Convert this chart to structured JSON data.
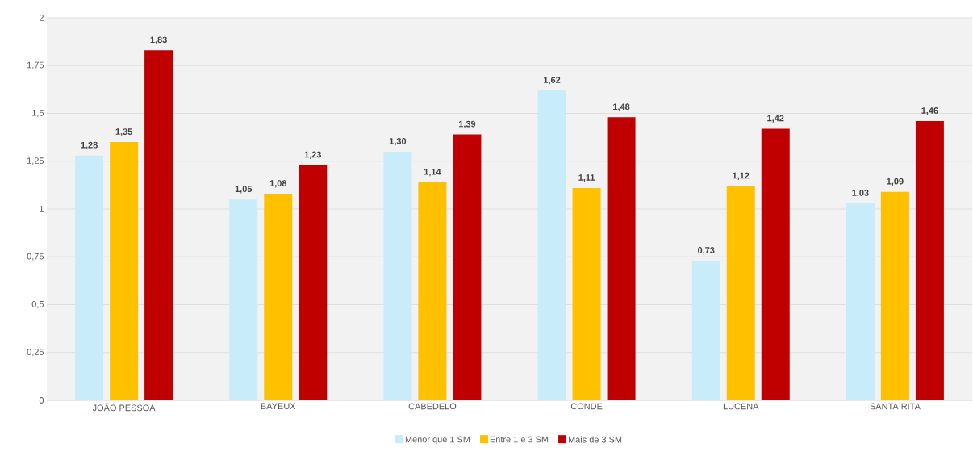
{
  "chart_data": {
    "type": "bar",
    "categories": [
      "JOÃO PESSOA",
      "BAYEUX",
      "CABEDELO",
      "CONDE",
      "LUCENA",
      "SANTA RITA"
    ],
    "series": [
      {
        "name": "Menor que 1 SM",
        "color": "#c9ecfa",
        "values": [
          1.28,
          1.05,
          1.3,
          1.62,
          0.73,
          1.03
        ],
        "value_labels": [
          "1,28",
          "1,05",
          "1,30",
          "1,62",
          "0,73",
          "1,03"
        ]
      },
      {
        "name": "Entre 1 e 3 SM",
        "color": "#ffc000",
        "values": [
          1.35,
          1.08,
          1.14,
          1.11,
          1.12,
          1.09
        ],
        "value_labels": [
          "1,35",
          "1,08",
          "1,14",
          "1,11",
          "1,12",
          "1,09"
        ]
      },
      {
        "name": "Mais de 3 SM",
        "color": "#c00000",
        "values": [
          1.83,
          1.23,
          1.39,
          1.48,
          1.42,
          1.46
        ],
        "value_labels": [
          "1,83",
          "1,23",
          "1,39",
          "1,48",
          "1,42",
          "1,46"
        ]
      }
    ],
    "ylim": [
      0,
      2
    ],
    "yticks": [
      0,
      {
        "value": 0.25,
        "label": "0,25"
      },
      {
        "value": 0.5,
        "label": "0,5"
      },
      {
        "value": 0.75,
        "label": "0,75"
      },
      1,
      {
        "value": 1.25,
        "label": "1,25"
      },
      {
        "value": 1.5,
        "label": "1,5"
      },
      {
        "value": 1.75,
        "label": "1,75"
      },
      2
    ],
    "grid": "y",
    "legend": "bottom"
  }
}
